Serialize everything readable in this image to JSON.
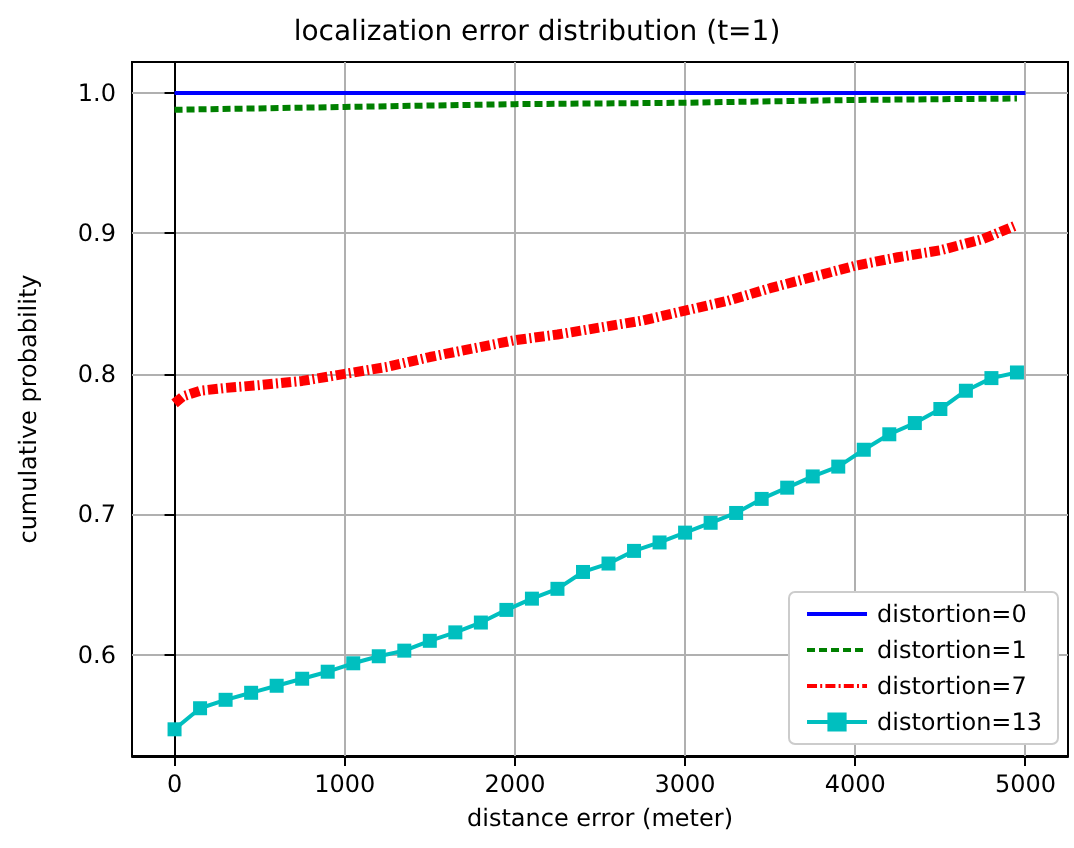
{
  "chart_data": {
    "type": "line",
    "title": "localization error distribution (t=1)",
    "xlabel": "distance error (meter)",
    "ylabel": "cumulative probability",
    "xlim": [
      -250,
      5250
    ],
    "xticks": [
      0,
      1000,
      2000,
      3000,
      4000,
      5000
    ],
    "ylim": [
      0.528,
      1.022
    ],
    "yticks": [
      0.6,
      0.7,
      0.8,
      0.9,
      {
        "value": 1.0,
        "label": "1.0"
      }
    ],
    "grid": true,
    "legend": "bottom right",
    "series": [
      {
        "name": "distortion=0",
        "color": "#0000ff",
        "line_style": "solid",
        "marker": "none",
        "x": [
          0,
          5000
        ],
        "values": [
          1.0,
          1.0
        ]
      },
      {
        "name": "distortion=1",
        "color": "#008000",
        "line_style": "dashed",
        "marker": "none",
        "x": [
          0,
          1000,
          2000,
          3000,
          4000,
          4950
        ],
        "values": [
          0.988,
          0.99,
          0.992,
          0.993,
          0.995,
          0.996
        ]
      },
      {
        "name": "distortion=7",
        "color": "#ff0000",
        "line_style": "dashdot",
        "marker": "none",
        "x": [
          0,
          50,
          150,
          300,
          500,
          750,
          1000,
          1250,
          1500,
          1750,
          2000,
          2250,
          2500,
          2750,
          3000,
          3250,
          3500,
          3750,
          4000,
          4250,
          4500,
          4750,
          4950
        ],
        "values": [
          0.779,
          0.784,
          0.788,
          0.79,
          0.792,
          0.795,
          0.8,
          0.805,
          0.812,
          0.818,
          0.824,
          0.828,
          0.833,
          0.838,
          0.845,
          0.852,
          0.861,
          0.869,
          0.877,
          0.883,
          0.888,
          0.896,
          0.906
        ]
      },
      {
        "name": "distortion=13",
        "color": "#00bfbf",
        "line_style": "solid",
        "marker": "square",
        "x": [
          0,
          150,
          300,
          450,
          600,
          750,
          900,
          1050,
          1200,
          1350,
          1500,
          1650,
          1800,
          1950,
          2100,
          2250,
          2400,
          2550,
          2700,
          2850,
          3000,
          3150,
          3300,
          3450,
          3600,
          3750,
          3900,
          4050,
          4200,
          4350,
          4500,
          4650,
          4800,
          4950
        ],
        "values": [
          0.547,
          0.562,
          0.568,
          0.573,
          0.578,
          0.583,
          0.588,
          0.594,
          0.599,
          0.603,
          0.61,
          0.616,
          0.623,
          0.632,
          0.64,
          0.647,
          0.659,
          0.665,
          0.674,
          0.68,
          0.687,
          0.694,
          0.701,
          0.711,
          0.719,
          0.727,
          0.734,
          0.746,
          0.757,
          0.765,
          0.775,
          0.788,
          0.797,
          0.801
        ]
      }
    ]
  }
}
